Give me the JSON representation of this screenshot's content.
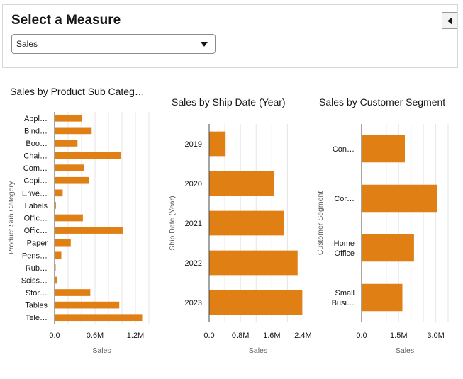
{
  "filter": {
    "title": "Select a Measure",
    "selected_value": "Sales",
    "collapse_icon": "triangle-left-icon",
    "dropdown_icon": "caret-down-icon"
  },
  "colors": {
    "bar": "#e07f13",
    "grid": "#e6e6e6",
    "axis": "#4a4a4a"
  },
  "chart_data": [
    {
      "type": "bar",
      "orientation": "horizontal",
      "title": "Sales by Product Sub Categ…",
      "xlabel": "Sales",
      "ylabel": "Product Sub Category",
      "categories": [
        "Appl…",
        "Bind…",
        "Boo…",
        "Chai…",
        "Com…",
        "Copi…",
        "Enve…",
        "Labels",
        "Offic…",
        "Offic…",
        "Paper",
        "Pens…",
        "Rub…",
        "Sciss…",
        "Stor…",
        "Tables",
        "Tele…"
      ],
      "values": [
        0.4,
        0.55,
        0.34,
        0.98,
        0.44,
        0.51,
        0.12,
        0.02,
        0.42,
        1.01,
        0.24,
        0.1,
        0.005,
        0.04,
        0.53,
        0.96,
        1.3
      ],
      "xlim": [
        0,
        1.4
      ],
      "ticks": [
        0,
        0.6,
        1.2
      ],
      "tick_labels": [
        "0.0",
        "0.6M",
        "1.2M"
      ],
      "grid_step": 0.2,
      "unit": "M"
    },
    {
      "type": "bar",
      "orientation": "horizontal",
      "title": "Sales by Ship Date (Year)",
      "xlabel": "Sales",
      "ylabel": "Ship Date (Year)",
      "categories": [
        "2019",
        "2020",
        "2021",
        "2022",
        "2023"
      ],
      "values": [
        0.42,
        1.66,
        1.92,
        2.26,
        2.38
      ],
      "xlim": [
        0,
        2.5
      ],
      "ticks": [
        0,
        0.8,
        1.6,
        2.4
      ],
      "tick_labels": [
        "0.0",
        "0.8M",
        "1.6M",
        "2.4M"
      ],
      "grid_step": 0.4,
      "unit": "M"
    },
    {
      "type": "bar",
      "orientation": "horizontal",
      "title": "Sales by Customer Segment",
      "xlabel": "Sales",
      "ylabel": "Customer Segment",
      "categories": [
        "Con…",
        "Cor…",
        "Home Office",
        "Small Busi…"
      ],
      "values": [
        1.75,
        3.05,
        2.12,
        1.65
      ],
      "xlim": [
        0,
        3.5
      ],
      "ticks": [
        0,
        1.5,
        3.0
      ],
      "tick_labels": [
        "0.0",
        "1.5M",
        "3.0M"
      ],
      "grid_step": 0.5,
      "unit": "M"
    }
  ]
}
